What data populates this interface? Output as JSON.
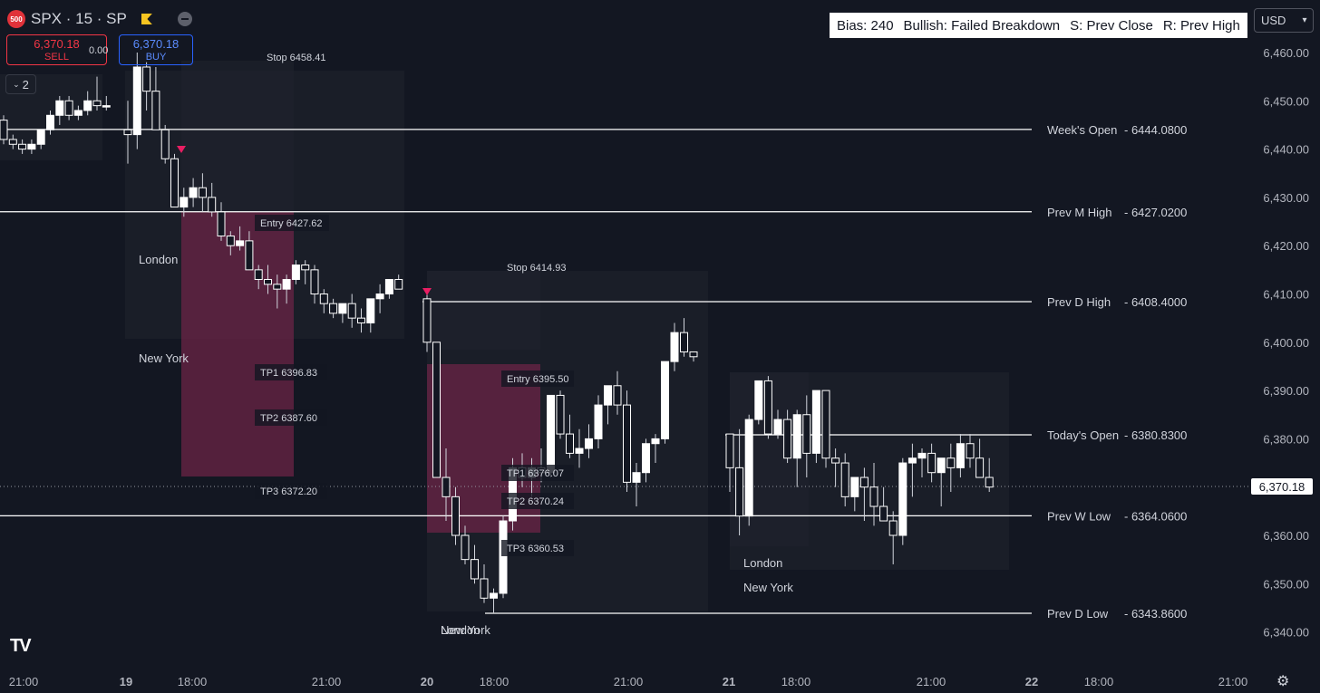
{
  "header": {
    "badge": "500",
    "symbol_line": "SPX · 15 · SP",
    "icons": [
      "sp500-badge-icon",
      "flag-icon",
      "collapse-icon"
    ]
  },
  "trade": {
    "sell_price": "6,370.18",
    "sell_label": "SELL",
    "spread": "0.00",
    "buy_price": "6,370.18",
    "buy_label": "BUY",
    "legend_count": "2"
  },
  "bias": {
    "bias": "Bias: 240",
    "direction": "Bullish: Failed Breakdown",
    "support": "S: Prev Close",
    "resistance": "R: Prev High"
  },
  "currency": "USD",
  "last_price": "6,370.18",
  "price_axis": {
    "min": 6335,
    "max": 6465,
    "ticks": [
      "6,460.00",
      "6,450.00",
      "6,440.00",
      "6,430.00",
      "6,420.00",
      "6,410.00",
      "6,400.00",
      "6,390.00",
      "6,380.00",
      "6,370.00",
      "6,360.00",
      "6,350.00",
      "6,340.00"
    ]
  },
  "time_axis": {
    "labels": [
      {
        "t": "21:00",
        "bold": false
      },
      {
        "t": "19",
        "bold": true
      },
      {
        "t": "18:00",
        "bold": false
      },
      {
        "t": "21:00",
        "bold": false
      },
      {
        "t": "20",
        "bold": true
      },
      {
        "t": "18:00",
        "bold": false
      },
      {
        "t": "21:00",
        "bold": false
      },
      {
        "t": "21",
        "bold": true
      },
      {
        "t": "18:00",
        "bold": false
      },
      {
        "t": "21:00",
        "bold": false
      },
      {
        "t": "22",
        "bold": true
      },
      {
        "t": "18:00",
        "bold": false
      },
      {
        "t": "21:00",
        "bold": false
      }
    ]
  },
  "levels": [
    {
      "label": "Week's Open",
      "value": "6444.0800",
      "price": 6444.08
    },
    {
      "label": "Prev M High",
      "value": "6427.0200",
      "price": 6427.02
    },
    {
      "label": "Prev D High",
      "value": "6408.4000",
      "price": 6408.4
    },
    {
      "label": "Today's Open",
      "value": "6380.8300",
      "price": 6380.83
    },
    {
      "label": "Prev W Low",
      "value": "6364.0600",
      "price": 6364.06
    },
    {
      "label": "Prev D Low",
      "value": "6343.8600",
      "price": 6343.86
    }
  ],
  "trades": [
    {
      "stop": "Stop 6458.41",
      "entry": "Entry 6427.62",
      "tp1": "TP1 6396.83",
      "tp2": "TP2 6387.60",
      "tp3": "TP3 6372.20"
    },
    {
      "stop": "Stop 6414.93",
      "entry": "Entry 6395.50",
      "tp1": "TP1 6376.07",
      "tp2": "TP2 6370.24",
      "tp3": "TP3 6360.53"
    }
  ],
  "sessions": [
    "London",
    "New York",
    "London",
    "New York",
    "London",
    "New York"
  ],
  "colors": {
    "background": "#131722",
    "candle_up": "#ffffff",
    "candle_down": "#131722",
    "short_zone": "#6b2445",
    "signal_marker": "#e91e63"
  },
  "chart_data": {
    "type": "candlestick",
    "symbol": "SPX",
    "interval": "15",
    "candles_group1": [
      [
        6446,
        6447,
        6441,
        6442
      ],
      [
        6442,
        6443,
        6440,
        6441
      ],
      [
        6441,
        6442,
        6439,
        6440
      ],
      [
        6440,
        6442,
        6439,
        6441
      ],
      [
        6441,
        6444,
        6440,
        6444
      ],
      [
        6444,
        6448,
        6443,
        6447
      ],
      [
        6447,
        6451,
        6445,
        6450
      ],
      [
        6450,
        6451,
        6446,
        6447
      ],
      [
        6447,
        6449,
        6446,
        6448
      ],
      [
        6448,
        6452,
        6447,
        6450
      ],
      [
        6450,
        6455,
        6448,
        6449
      ],
      [
        6449,
        6451,
        6448,
        6449
      ]
    ],
    "candles_group2": [
      [
        6444,
        6450,
        6437,
        6443
      ],
      [
        6443,
        6460,
        6440,
        6457
      ],
      [
        6457,
        6458,
        6448,
        6452
      ],
      [
        6452,
        6457,
        6444,
        6444
      ],
      [
        6444,
        6445,
        6437,
        6438
      ],
      [
        6438,
        6439,
        6428,
        6428
      ],
      [
        6428,
        6432,
        6426,
        6430
      ],
      [
        6430,
        6434,
        6428,
        6432
      ],
      [
        6432,
        6435,
        6427,
        6430
      ],
      [
        6430,
        6433,
        6426,
        6427
      ],
      [
        6427,
        6429,
        6421,
        6422
      ],
      [
        6422,
        6423,
        6418,
        6420
      ],
      [
        6420,
        6424,
        6419,
        6421
      ],
      [
        6421,
        6423,
        6415,
        6415
      ],
      [
        6415,
        6416,
        6411,
        6413
      ],
      [
        6413,
        6416,
        6410,
        6412
      ],
      [
        6412,
        6414,
        6407,
        6411
      ],
      [
        6411,
        6414,
        6408,
        6413
      ],
      [
        6413,
        6417,
        6412,
        6416
      ],
      [
        6416,
        6417,
        6412,
        6415
      ],
      [
        6415,
        6416,
        6408,
        6410
      ],
      [
        6410,
        6411,
        6406,
        6408
      ],
      [
        6408,
        6409,
        6405,
        6406
      ],
      [
        6406,
        6408,
        6404,
        6408
      ],
      [
        6408,
        6410,
        6403,
        6405
      ],
      [
        6405,
        6407,
        6402,
        6404
      ],
      [
        6404,
        6409,
        6402,
        6409
      ],
      [
        6409,
        6412,
        6406,
        6410
      ],
      [
        6410,
        6413,
        6409,
        6413
      ],
      [
        6413,
        6414,
        6411,
        6411
      ]
    ],
    "candles_group3": [
      [
        6409,
        6410,
        6398,
        6400
      ],
      [
        6400,
        6400,
        6372,
        6372
      ],
      [
        6372,
        6378,
        6363,
        6368
      ],
      [
        6368,
        6370,
        6358,
        6360
      ],
      [
        6360,
        6362,
        6354,
        6355
      ],
      [
        6355,
        6358,
        6350,
        6351
      ],
      [
        6351,
        6354,
        6346,
        6347
      ],
      [
        6347,
        6349,
        6344,
        6348
      ],
      [
        6348,
        6364,
        6347,
        6363
      ],
      [
        6363,
        6376,
        6361,
        6374
      ],
      [
        6374,
        6377,
        6370,
        6372
      ],
      [
        6372,
        6376,
        6368,
        6374
      ],
      [
        6374,
        6378,
        6371,
        6373
      ],
      [
        6373,
        6389,
        6372,
        6389
      ],
      [
        6389,
        6390,
        6380,
        6381
      ],
      [
        6381,
        6385,
        6376,
        6377
      ],
      [
        6377,
        6382,
        6374,
        6378
      ],
      [
        6378,
        6383,
        6376,
        6380
      ],
      [
        6380,
        6389,
        6378,
        6387
      ],
      [
        6387,
        6391,
        6383,
        6391
      ],
      [
        6391,
        6394,
        6385,
        6387
      ],
      [
        6387,
        6390,
        6369,
        6371
      ],
      [
        6371,
        6375,
        6366,
        6373
      ],
      [
        6373,
        6380,
        6371,
        6379
      ],
      [
        6379,
        6381,
        6375,
        6380
      ],
      [
        6380,
        6396,
        6379,
        6396
      ],
      [
        6396,
        6404,
        6394,
        6402
      ],
      [
        6402,
        6405,
        6397,
        6398
      ],
      [
        6398,
        6398,
        6396,
        6397
      ]
    ],
    "candles_group4": [
      [
        6381,
        6381,
        6369,
        6374
      ],
      [
        6374,
        6382,
        6360,
        6364
      ],
      [
        6364,
        6385,
        6362,
        6384
      ],
      [
        6384,
        6392,
        6383,
        6392
      ],
      [
        6392,
        6393,
        6380,
        6381
      ],
      [
        6381,
        6386,
        6380,
        6384
      ],
      [
        6384,
        6386,
        6375,
        6376
      ],
      [
        6376,
        6386,
        6370,
        6385
      ],
      [
        6385,
        6389,
        6372,
        6377
      ],
      [
        6377,
        6390,
        6375,
        6390
      ],
      [
        6390,
        6390,
        6374,
        6376
      ],
      [
        6376,
        6378,
        6370,
        6375
      ],
      [
        6375,
        6377,
        6366,
        6368
      ],
      [
        6368,
        6372,
        6365,
        6372
      ],
      [
        6372,
        6374,
        6363,
        6370
      ],
      [
        6370,
        6375,
        6362,
        6366
      ],
      [
        6366,
        6370,
        6363,
        6363
      ],
      [
        6363,
        6365,
        6354,
        6360
      ],
      [
        6360,
        6376,
        6358,
        6375
      ],
      [
        6375,
        6379,
        6368,
        6376
      ],
      [
        6376,
        6378,
        6372,
        6377
      ],
      [
        6377,
        6379,
        6371,
        6373
      ],
      [
        6373,
        6376,
        6366,
        6376
      ],
      [
        6376,
        6379,
        6369,
        6374
      ],
      [
        6374,
        6381,
        6372,
        6379
      ],
      [
        6379,
        6381,
        6374,
        6376
      ],
      [
        6376,
        6380,
        6375,
        6372
      ],
      [
        6372,
        6376,
        6369,
        6370
      ]
    ]
  }
}
